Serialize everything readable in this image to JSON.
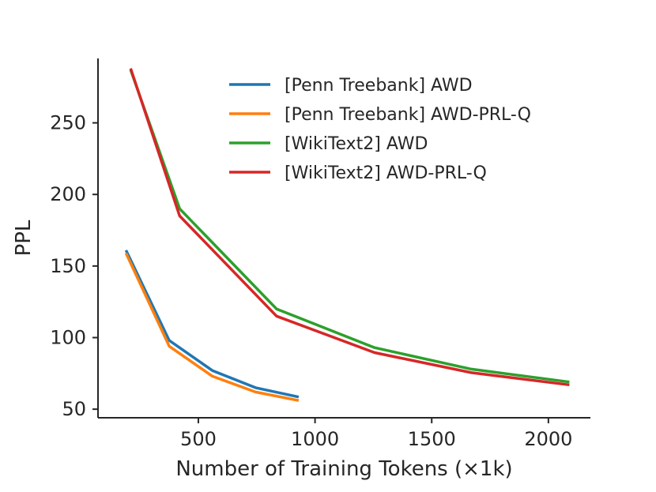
{
  "chart_data": {
    "type": "line",
    "title": "",
    "xlabel": "Number of Training Tokens (×1k)",
    "ylabel": "PPL",
    "xlim": [
      70,
      2180
    ],
    "ylim": [
      44,
      295
    ],
    "xticks": [
      500,
      1000,
      1500,
      2000
    ],
    "yticks": [
      50,
      100,
      150,
      200,
      250
    ],
    "grid": false,
    "legend_position": "top-right",
    "series": [
      {
        "name": "[Penn Treebank] AWD",
        "color": "#1f77b4",
        "x": [
          190,
          375,
          560,
          745,
          930
        ],
        "y": [
          161,
          98,
          77,
          65,
          58.5
        ]
      },
      {
        "name": "[Penn Treebank] AWD-PRL-Q",
        "color": "#ff7f0e",
        "x": [
          190,
          375,
          560,
          745,
          930
        ],
        "y": [
          159,
          94,
          73,
          62,
          56
        ]
      },
      {
        "name": "[WikiText2] AWD",
        "color": "#2ca02c",
        "x": [
          210,
          420,
          835,
          1255,
          1670,
          2090
        ],
        "y": [
          287,
          190,
          120,
          93,
          78,
          69
        ]
      },
      {
        "name": "[WikiText2] AWD-PRL-Q",
        "color": "#d62728",
        "x": [
          210,
          420,
          835,
          1255,
          1670,
          2090
        ],
        "y": [
          288,
          185,
          115,
          89.5,
          75.5,
          67
        ]
      }
    ]
  }
}
